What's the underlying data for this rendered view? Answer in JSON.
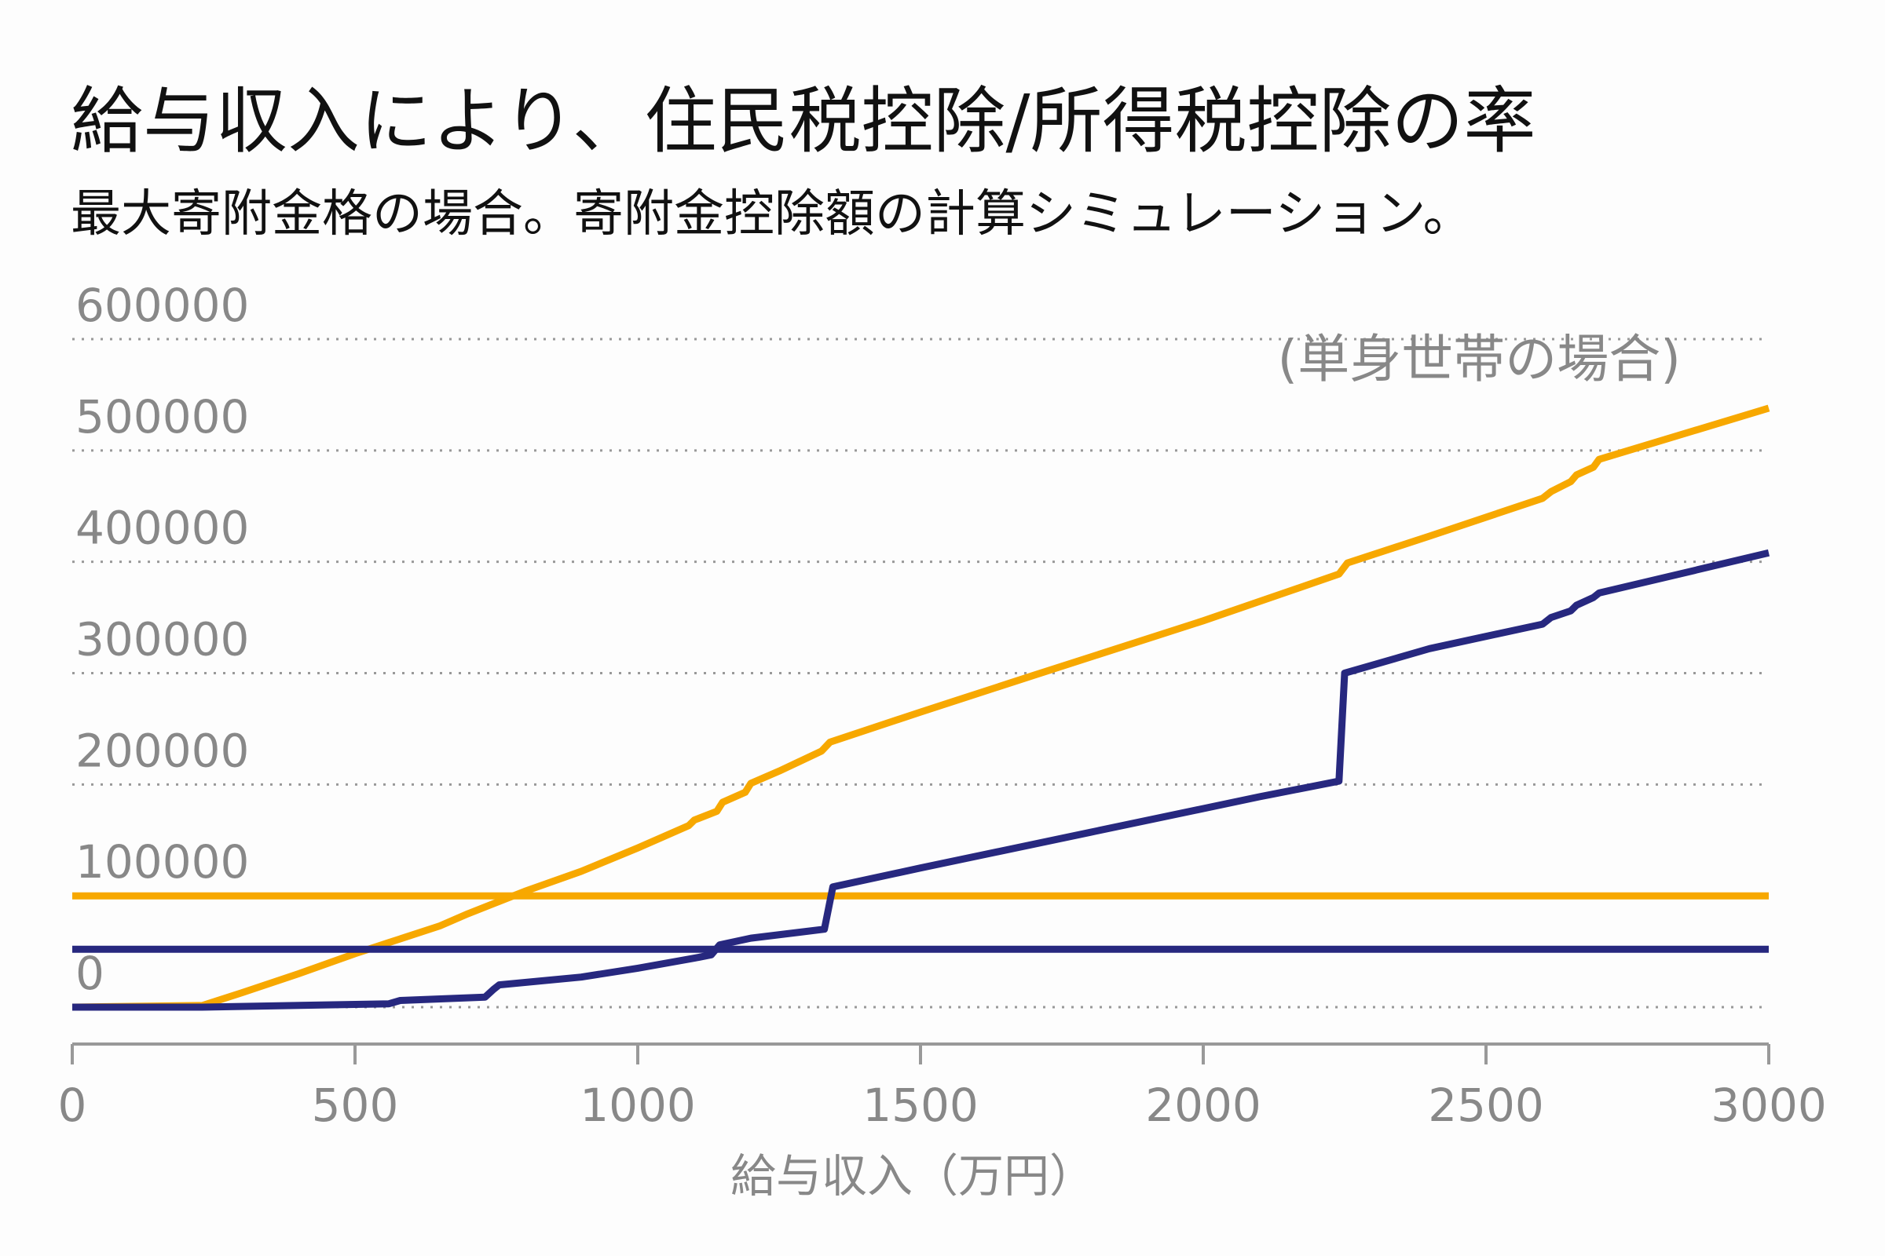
{
  "chart_data": {
    "type": "line",
    "title": "給与収入により、住民税控除/所得税控除の率",
    "subtitle": "最大寄附金格の場合。寄附金控除額の計算シミュレーション。",
    "annotation": "(単身世帯の場合)",
    "xlabel": "給与収入（万円）",
    "ylabel": "",
    "xlim": [
      0,
      3000
    ],
    "ylim": [
      -30000,
      600000
    ],
    "x_ticks": [
      0,
      500,
      1000,
      1500,
      2000,
      2500,
      3000
    ],
    "x_tick_labels": [
      "0",
      "500",
      "1000",
      "1500",
      "2000",
      "2500",
      "3000"
    ],
    "y_ticks": [
      0,
      100000,
      200000,
      300000,
      400000,
      500000,
      600000
    ],
    "y_tick_labels": [
      "0",
      "100000",
      "200000",
      "300000",
      "400000",
      "500000",
      "600000"
    ],
    "grid": "horizontal dotted",
    "series": [
      {
        "color": "#F7A800",
        "x": [
          0,
          230,
          300,
          400,
          500,
          560,
          650,
          700,
          750,
          800,
          900,
          1000,
          1090,
          1100,
          1140,
          1150,
          1190,
          1200,
          1250,
          1325,
          1340,
          1500,
          1700,
          2000,
          2240,
          2255,
          2400,
          2600,
          2615,
          2650,
          2660,
          2690,
          2700,
          3000
        ],
        "y": [
          0,
          1500,
          13000,
          30000,
          48000,
          58000,
          73000,
          84000,
          94000,
          104000,
          122000,
          143000,
          163000,
          168000,
          176000,
          184000,
          193000,
          201000,
          212000,
          230000,
          238000,
          265000,
          298000,
          347000,
          389000,
          399000,
          423000,
          457000,
          463000,
          472000,
          478000,
          485000,
          492000,
          538000
        ]
      },
      {
        "color": "#F7A800",
        "x": [
          0,
          3000
        ],
        "y": [
          100000,
          100000
        ]
      },
      {
        "color": "#27287F",
        "x": [
          0,
          230,
          560,
          580,
          730,
          745,
          755,
          900,
          1000,
          1100,
          1130,
          1145,
          1200,
          1330,
          1345,
          1500,
          1800,
          2100,
          2240,
          2250,
          2400,
          2600,
          2615,
          2650,
          2660,
          2690,
          2700,
          3000
        ],
        "y": [
          0,
          0,
          3000,
          6000,
          9000,
          16000,
          20000,
          27000,
          35000,
          44000,
          47000,
          56000,
          62000,
          70000,
          108000,
          125000,
          157000,
          189000,
          203000,
          300000,
          322000,
          344000,
          350000,
          356000,
          361000,
          368000,
          372000,
          408000
        ]
      },
      {
        "color": "#27287F",
        "x": [
          0,
          3000
        ],
        "y": [
          52000,
          52000
        ]
      }
    ]
  }
}
